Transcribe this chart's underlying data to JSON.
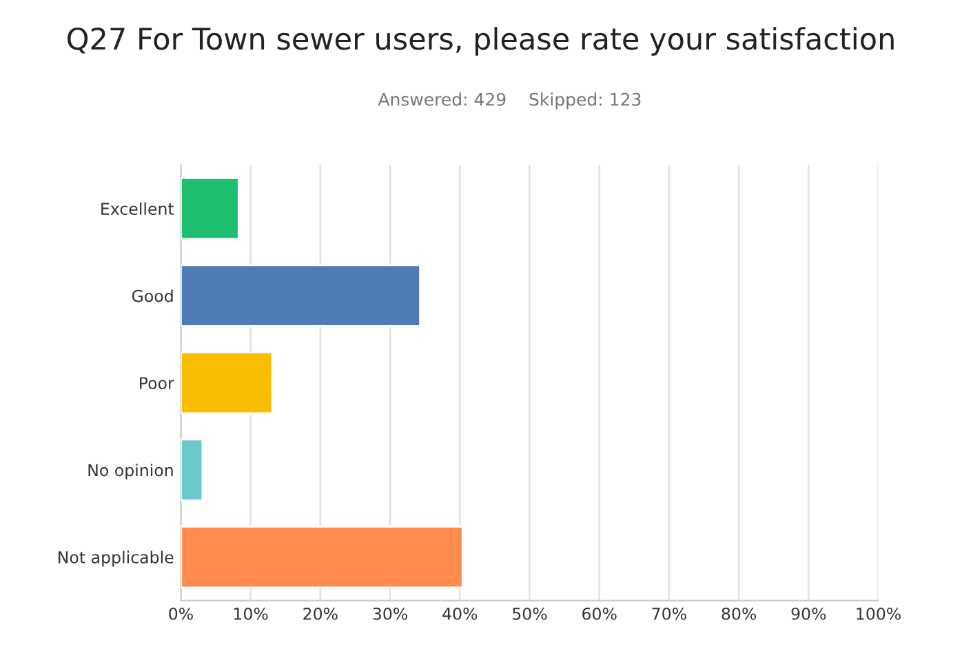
{
  "chart_data": {
    "type": "bar",
    "orientation": "horizontal",
    "title": "Q27 For Town sewer users, please rate your satisfaction",
    "subtitle": "Answered: 429    Skipped: 123",
    "categories": [
      "Excellent",
      "Good",
      "Poor",
      "No opinion",
      "Not applicable"
    ],
    "values": [
      8.3,
      34.3,
      13.1,
      3.1,
      40.4
    ],
    "colors": [
      "#1fbf71",
      "#507cb6",
      "#f9be00",
      "#6bc8cd",
      "#ff8b4f"
    ],
    "xlim": [
      0,
      100
    ],
    "xticks": [
      {
        "value": 0,
        "label": "0%"
      },
      {
        "value": 10,
        "label": "10%"
      },
      {
        "value": 20,
        "label": "20%"
      },
      {
        "value": 30,
        "label": "30%"
      },
      {
        "value": 40,
        "label": "40%"
      },
      {
        "value": 50,
        "label": "50%"
      },
      {
        "value": 60,
        "label": "60%"
      },
      {
        "value": 70,
        "label": "70%"
      },
      {
        "value": 80,
        "label": "80%"
      },
      {
        "value": 90,
        "label": "90%"
      },
      {
        "value": 100,
        "label": "100%"
      }
    ],
    "grid": "x"
  }
}
